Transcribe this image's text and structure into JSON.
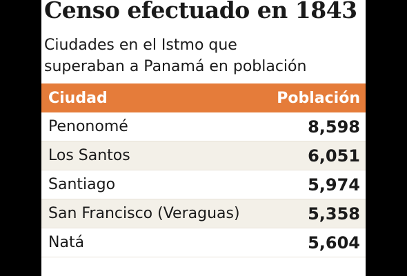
{
  "title": "Censo efectuado en 1843",
  "subtitle_lines": [
    "Ciudades en el Istmo que",
    "superaban a Panamá en población"
  ],
  "colors": {
    "header_bg": "#e57c3a",
    "row_alt_bg": "#f3f0e8",
    "text": "#1a1a1a"
  },
  "chart_data": {
    "type": "table",
    "title": "Censo efectuado en 1843",
    "subtitle": "Ciudades en el Istmo que superaban a Panamá en población",
    "columns": [
      "Ciudad",
      "Población"
    ],
    "rows": [
      [
        "Penonomé",
        "8,598"
      ],
      [
        "Los Santos",
        "6,051"
      ],
      [
        "Santiago",
        "5,974"
      ],
      [
        "San Francisco (Veraguas)",
        "5,358"
      ],
      [
        "Natá",
        "5,604"
      ]
    ]
  }
}
